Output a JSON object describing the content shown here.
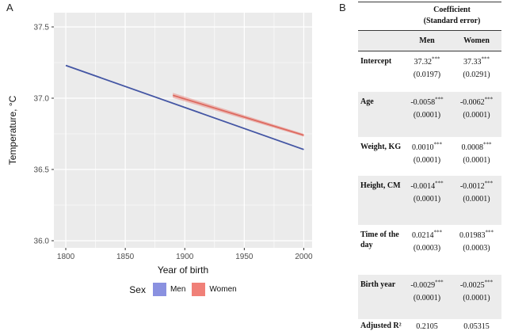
{
  "panelA": {
    "label": "A"
  },
  "panelB": {
    "label": "B",
    "table": {
      "title_line1": "Coefficient",
      "title_line2": "(Standard error)",
      "columns": [
        "Men",
        "Women"
      ],
      "rows": [
        {
          "label": "Intercept",
          "men": {
            "coef": "37.32",
            "stars": "***",
            "se": "(0.0197)"
          },
          "women": {
            "coef": "37.33",
            "stars": "***",
            "se": "(0.0291)"
          }
        },
        {
          "label": "Age",
          "men": {
            "coef": "-0.0058",
            "stars": "***",
            "se": "(0.0001)"
          },
          "women": {
            "coef": "-0.0062",
            "stars": "***",
            "se": "(0.0001)"
          }
        },
        {
          "label": "Weight, KG",
          "men": {
            "coef": "0.0010",
            "stars": "***",
            "se": "(0.0001)"
          },
          "women": {
            "coef": "0.0008",
            "stars": "***",
            "se": "(0.0001)"
          }
        },
        {
          "label": "Height, CM",
          "men": {
            "coef": "-0.0014",
            "stars": "***",
            "se": "(0.0001)"
          },
          "women": {
            "coef": "-0.0012",
            "stars": "***",
            "se": "(0.0001)"
          }
        },
        {
          "label": "Time of the day",
          "men": {
            "coef": "0.0214",
            "stars": "***",
            "se": "(0.0003)"
          },
          "women": {
            "coef": "0.01983",
            "stars": "***",
            "se": "(0.0003)"
          }
        },
        {
          "label": "Birth year",
          "men": {
            "coef": "-0.0029",
            "stars": "***",
            "se": "(0.0001)"
          },
          "women": {
            "coef": "-0.0025",
            "stars": "***",
            "se": "(0.0001)"
          }
        },
        {
          "label": "Adjusted R²",
          "men": {
            "coef": "0.2105",
            "stars": "",
            "se": ""
          },
          "women": {
            "coef": "0.05315",
            "stars": "",
            "se": ""
          }
        }
      ]
    }
  },
  "chart_data": {
    "type": "line",
    "title": "",
    "xlabel": "Year of birth",
    "ylabel": "Temperature, °C",
    "xlim": [
      1790,
      2007
    ],
    "ylim": [
      35.95,
      37.6
    ],
    "x_ticks": [
      {
        "v": 1800,
        "label": "1800"
      },
      {
        "v": 1850,
        "label": "1850"
      },
      {
        "v": 1900,
        "label": "1900"
      },
      {
        "v": 1950,
        "label": "1950"
      },
      {
        "v": 2000,
        "label": "2000"
      }
    ],
    "y_ticks": [
      {
        "v": 36.0,
        "label": "36.0"
      },
      {
        "v": 36.5,
        "label": "36.5"
      },
      {
        "v": 37.0,
        "label": "37.0"
      },
      {
        "v": 37.5,
        "label": "37.5"
      }
    ],
    "x_minor": [
      1825,
      1875,
      1925,
      1975
    ],
    "y_minor": [
      36.25,
      36.75,
      37.25
    ],
    "grid": true,
    "plot_bg": "#ebebeb",
    "grid_color": "#ffffff",
    "tick_label_color": "#4d4d4d",
    "series": [
      {
        "name": "Men",
        "color": "#4456a4",
        "swatch": "#8a91e0",
        "points": [
          [
            1800,
            37.23
          ],
          [
            2000,
            36.64
          ]
        ]
      },
      {
        "name": "Women",
        "color": "#dd6a60",
        "swatch": "#f08078",
        "points": [
          [
            1890,
            37.02
          ],
          [
            2000,
            36.74
          ]
        ],
        "ribbon": {
          "color": "#ea9088",
          "opacity": 0.55,
          "w_start": 3.2,
          "w_end": 1.8
        }
      }
    ],
    "legend": {
      "title": "Sex",
      "position": "bottom"
    }
  }
}
